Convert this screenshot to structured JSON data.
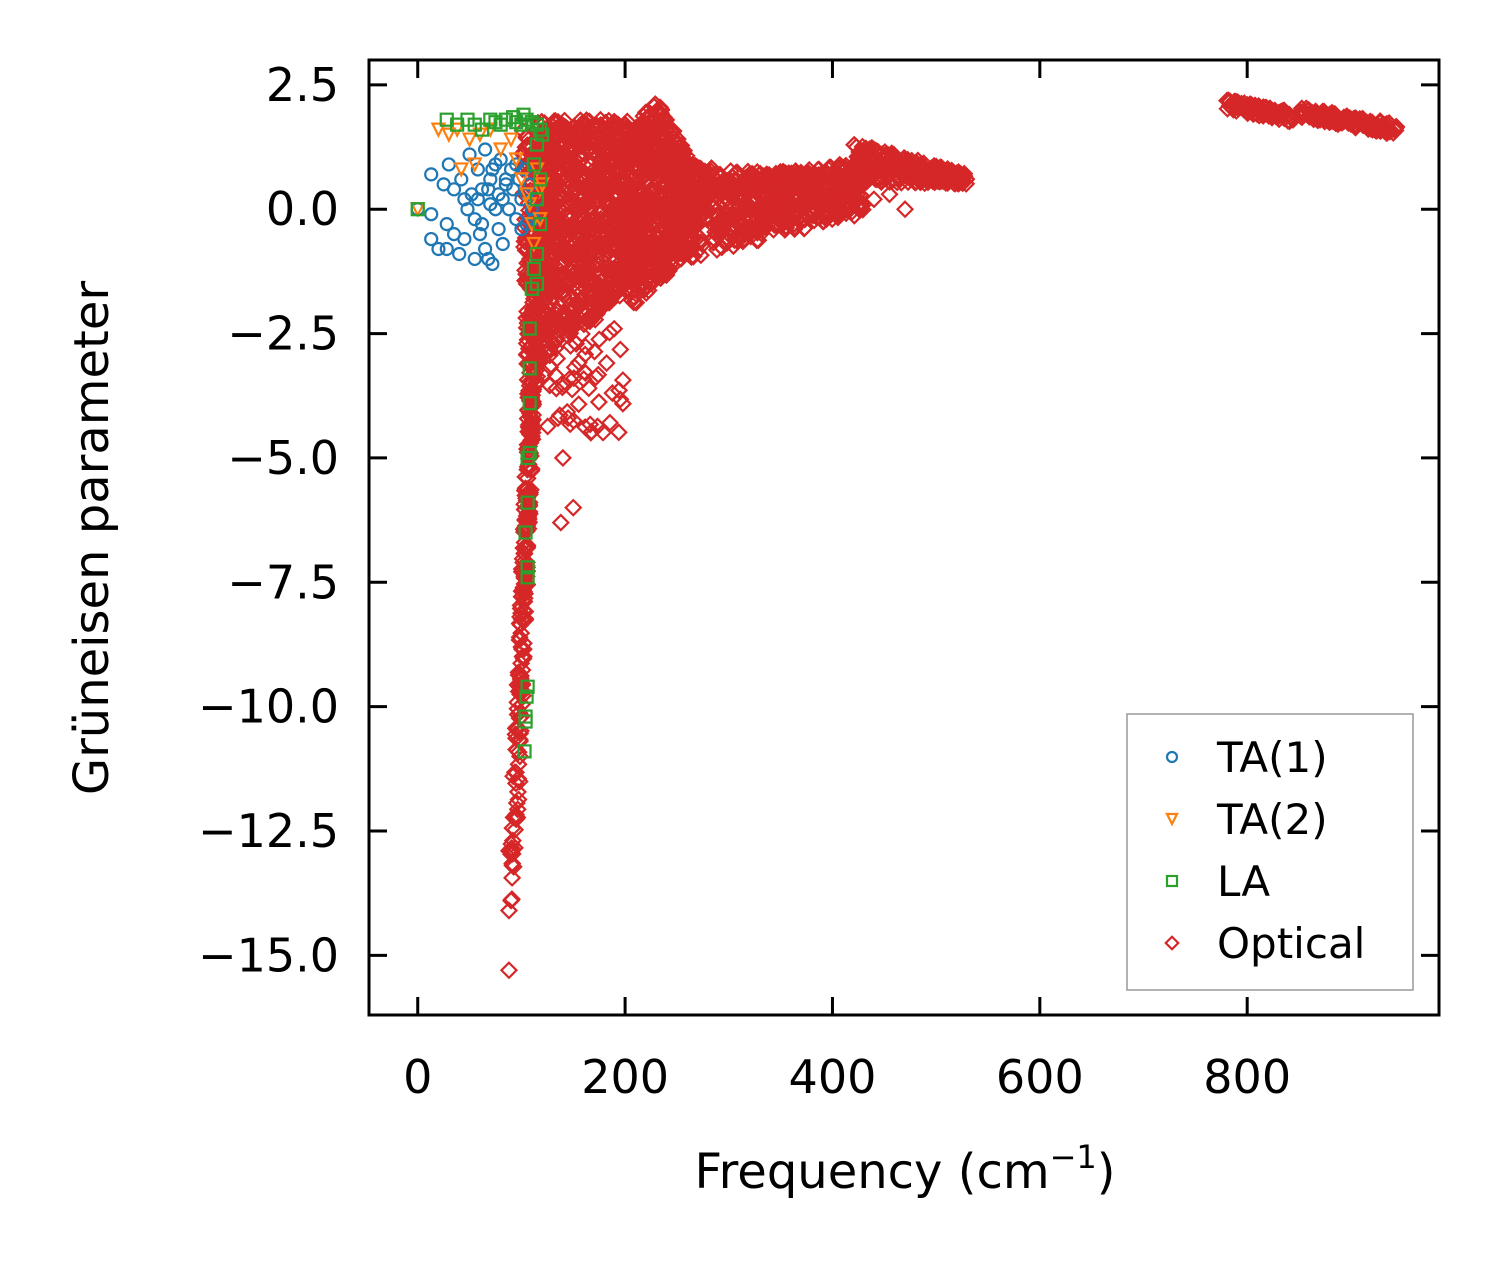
{
  "chart_data": {
    "type": "scatter",
    "title": "",
    "xlabel": "Frequency (cm",
    "xlabel_sup": "−1",
    "xlabel_close": ")",
    "ylabel": "Grüneisen parameter",
    "xlim": [
      -47,
      985
    ],
    "ylim": [
      -16.2,
      3.0
    ],
    "xticks": [
      0,
      200,
      400,
      600,
      800
    ],
    "xtick_labels": [
      "0",
      "200",
      "400",
      "600",
      "800"
    ],
    "yticks": [
      2.5,
      0.0,
      -2.5,
      -5.0,
      -7.5,
      -10.0,
      -12.5,
      -15.0
    ],
    "ytick_labels": [
      "2.5",
      "0.0",
      "−2.5",
      "−5.0",
      "−7.5",
      "−10.0",
      "−12.5",
      "−15.0"
    ],
    "legend_position": "lower-right",
    "series": [
      {
        "name": "TA(1)",
        "marker": "circle",
        "color": "#1f77b4",
        "points": [
          [
            0,
            0
          ],
          [
            13,
            0.7
          ],
          [
            13,
            -0.1
          ],
          [
            13,
            -0.6
          ],
          [
            20,
            -0.8
          ],
          [
            25,
            0.5
          ],
          [
            28,
            -0.3
          ],
          [
            28,
            -0.8
          ],
          [
            30,
            0.9
          ],
          [
            35,
            0.4
          ],
          [
            35,
            -0.5
          ],
          [
            40,
            -0.9
          ],
          [
            42,
            0.6
          ],
          [
            45,
            0.2
          ],
          [
            45,
            -0.6
          ],
          [
            50,
            1.1
          ],
          [
            52,
            0.3
          ],
          [
            55,
            -0.2
          ],
          [
            55,
            -1.0
          ],
          [
            58,
            0.8
          ],
          [
            60,
            -0.5
          ],
          [
            62,
            0.4
          ],
          [
            65,
            1.2
          ],
          [
            65,
            -0.8
          ],
          [
            68,
            -1.0
          ],
          [
            70,
            0.6
          ],
          [
            70,
            0.1
          ],
          [
            72,
            -1.1
          ],
          [
            75,
            0.9
          ],
          [
            78,
            0.3
          ],
          [
            78,
            -0.4
          ],
          [
            80,
            1.0
          ],
          [
            82,
            -0.7
          ],
          [
            85,
            0.5
          ],
          [
            88,
            0.0
          ],
          [
            90,
            0.8
          ],
          [
            92,
            0.4
          ],
          [
            95,
            0.9
          ],
          [
            95,
            -0.2
          ],
          [
            98,
            0.6
          ],
          [
            100,
            0.2
          ],
          [
            100,
            -0.4
          ],
          [
            103,
            0.8
          ],
          [
            105,
            0.3
          ],
          [
            105,
            -0.3
          ],
          [
            108,
            0.5
          ],
          [
            110,
            0.0
          ],
          [
            112,
            -0.2
          ],
          [
            115,
            0.2
          ],
          [
            48,
            0.0
          ],
          [
            58,
            0.2
          ],
          [
            68,
            0.4
          ],
          [
            75,
            0.0
          ],
          [
            85,
            0.6
          ],
          [
            62,
            -0.3
          ],
          [
            72,
            0.8
          ],
          [
            82,
            0.2
          ]
        ]
      },
      {
        "name": "TA(2)",
        "marker": "triangle-down",
        "color": "#ff7f0e",
        "points": [
          [
            0,
            0
          ],
          [
            20,
            1.6
          ],
          [
            30,
            1.5
          ],
          [
            38,
            1.6
          ],
          [
            42,
            0.8
          ],
          [
            50,
            1.4
          ],
          [
            55,
            0.9
          ],
          [
            60,
            1.5
          ],
          [
            70,
            1.6
          ],
          [
            80,
            1.2
          ],
          [
            90,
            1.4
          ],
          [
            95,
            1.0
          ],
          [
            100,
            0.6
          ],
          [
            105,
            0.3
          ],
          [
            110,
            -0.3
          ],
          [
            115,
            0.8
          ],
          [
            118,
            0.4
          ],
          [
            120,
            0.5
          ],
          [
            118,
            -0.2
          ],
          [
            112,
            -0.7
          ],
          [
            108,
            0.1
          ]
        ]
      },
      {
        "name": "LA",
        "marker": "square",
        "color": "#2ca02c",
        "points": [
          [
            0,
            0
          ],
          [
            28,
            1.8
          ],
          [
            38,
            1.7
          ],
          [
            48,
            1.8
          ],
          [
            55,
            1.7
          ],
          [
            62,
            1.6
          ],
          [
            70,
            1.8
          ],
          [
            75,
            1.75
          ],
          [
            80,
            1.7
          ],
          [
            85,
            1.8
          ],
          [
            92,
            1.85
          ],
          [
            95,
            1.75
          ],
          [
            100,
            1.7
          ],
          [
            102,
            1.9
          ],
          [
            105,
            1.8
          ],
          [
            110,
            1.75
          ],
          [
            115,
            1.7
          ],
          [
            118,
            1.6
          ],
          [
            120,
            1.5
          ],
          [
            115,
            1.3
          ],
          [
            112,
            0.9
          ],
          [
            118,
            0.6
          ],
          [
            115,
            0.2
          ],
          [
            118,
            -0.3
          ],
          [
            115,
            -0.9
          ],
          [
            112,
            -1.2
          ],
          [
            115,
            -1.5
          ],
          [
            110,
            -1.6
          ],
          [
            108,
            -2.4
          ],
          [
            108,
            -3.2
          ],
          [
            108,
            -3.9
          ],
          [
            108,
            -4.9
          ],
          [
            106,
            -5.0
          ],
          [
            106,
            -5.9
          ],
          [
            104,
            -6.5
          ],
          [
            106,
            -7.2
          ],
          [
            106,
            -7.4
          ],
          [
            106,
            -9.6
          ],
          [
            105,
            -9.8
          ],
          [
            104,
            -10.2
          ],
          [
            104,
            -10.3
          ],
          [
            103,
            -10.9
          ]
        ]
      },
      {
        "name": "Optical",
        "marker": "diamond",
        "color": "#d62728"
      }
    ]
  },
  "legend": {
    "labels": [
      "TA(1)",
      "TA(2)",
      "LA",
      "Optical"
    ]
  }
}
